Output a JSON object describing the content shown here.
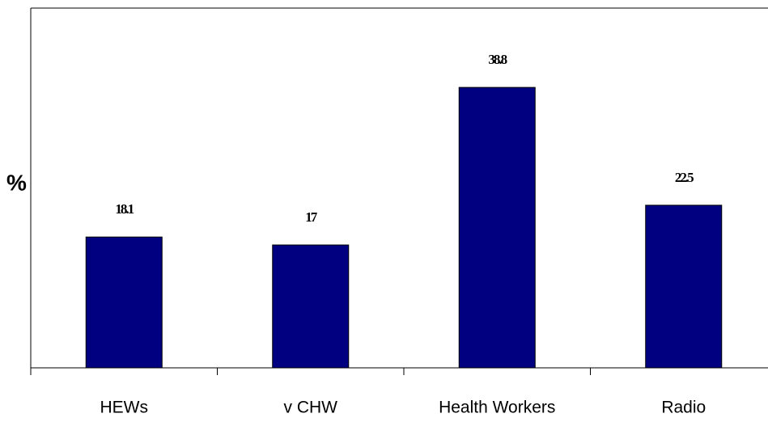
{
  "chart_data": {
    "type": "bar",
    "ylabel": "%",
    "categories": [
      "HEWs",
      "v CHW",
      "Health Workers",
      "Radio"
    ],
    "values": [
      18.1,
      17,
      38.8,
      22.5
    ],
    "color": "#000080",
    "ylim": [
      0,
      50
    ]
  }
}
